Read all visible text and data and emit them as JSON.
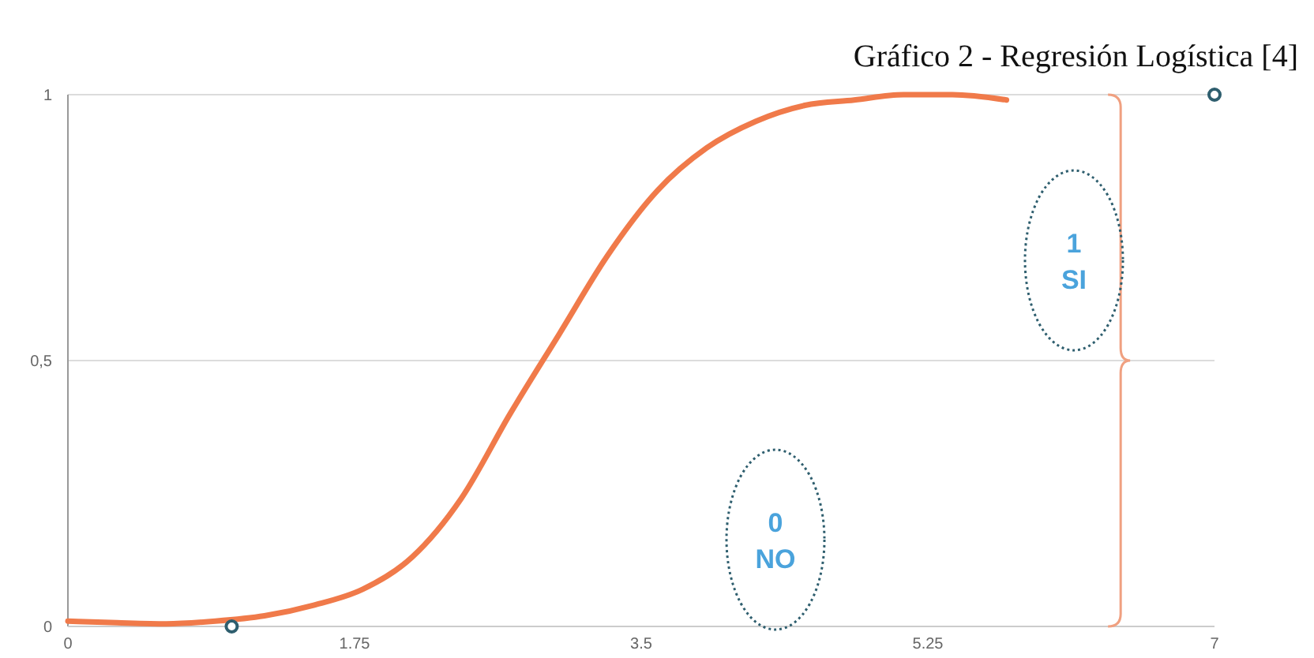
{
  "chart_data": {
    "type": "line",
    "title": "Gráfico 2 - Regresión Logística [4]",
    "xlim": [
      0,
      7
    ],
    "xticks": [
      0,
      1.75,
      3.5,
      5.25,
      7
    ],
    "ylim": [
      0,
      1
    ],
    "yticks": [
      0,
      {
        "value": 0.5,
        "label": "0,5"
      },
      1
    ],
    "grid": "y",
    "line_style": "solid",
    "series": [
      {
        "color": "#f07a4a",
        "marker": "none",
        "x": [
          0,
          0.3,
          0.6,
          0.9,
          1.2,
          1.5,
          1.8,
          2.1,
          2.4,
          2.7,
          3.0,
          3.3,
          3.6,
          3.9,
          4.2,
          4.5,
          4.8,
          5.1,
          5.4,
          5.73
        ],
        "values": [
          0.01,
          0.007,
          0.005,
          0.01,
          0.02,
          0.04,
          0.07,
          0.13,
          0.24,
          0.4,
          0.55,
          0.7,
          0.82,
          0.9,
          0.95,
          0.98,
          0.99,
          1.0,
          1.0,
          0.99
        ]
      },
      {
        "type": "scatter",
        "color": "#2e5e6e",
        "marker": "circle",
        "x": [
          1,
          7
        ],
        "values": [
          0,
          1
        ]
      }
    ],
    "annotations": [
      "1\nSI",
      "0\nNO"
    ]
  }
}
